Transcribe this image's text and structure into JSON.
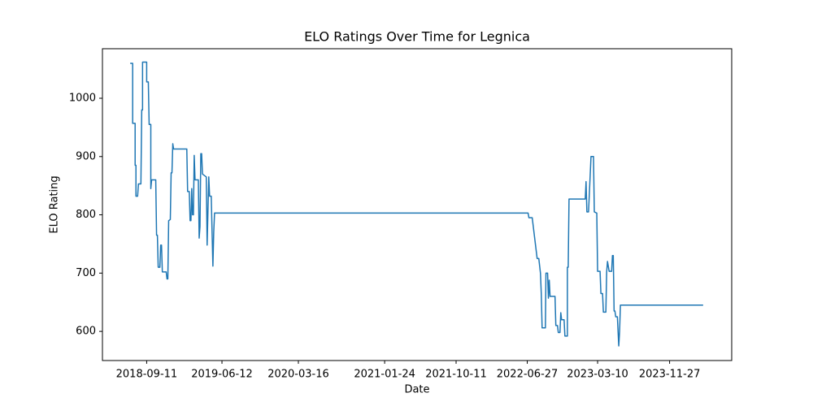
{
  "chart_data": {
    "type": "line",
    "title": "ELO Ratings Over Time for Legnica",
    "x_label": "Date",
    "y_label": "ELO Rating",
    "color": "#1f77b4",
    "x": [
      "2018-07-13",
      "2018-07-22",
      "2018-07-22",
      "2018-07-31",
      "2018-07-31",
      "2018-08-03",
      "2018-08-03",
      "2018-08-09",
      "2018-08-12",
      "2018-08-21",
      "2018-08-24",
      "2018-08-27",
      "2018-08-27",
      "2018-09-11",
      "2018-09-11",
      "2018-09-17",
      "2018-09-20",
      "2018-09-26",
      "2018-09-26",
      "2018-09-29",
      "2018-10-14",
      "2018-10-17",
      "2018-10-20",
      "2018-10-23",
      "2018-10-29",
      "2018-11-01",
      "2018-11-04",
      "2018-11-07",
      "2018-11-21",
      "2018-11-24",
      "2018-11-27",
      "2018-11-30",
      "2018-12-06",
      "2018-12-09",
      "2018-12-12",
      "2018-12-15",
      "2018-12-18",
      "2019-02-04",
      "2019-02-07",
      "2019-02-13",
      "2019-02-16",
      "2019-02-19",
      "2019-02-22",
      "2019-02-25",
      "2019-02-28",
      "2019-03-03",
      "2019-03-06",
      "2019-03-18",
      "2019-03-21",
      "2019-03-24",
      "2019-03-27",
      "2019-03-30",
      "2019-04-02",
      "2019-04-16",
      "2019-04-19",
      "2019-04-25",
      "2019-04-28",
      "2019-05-04",
      "2019-05-07",
      "2019-05-10",
      "2019-05-13",
      "2019-05-16",
      "2022-06-30",
      "2022-07-03",
      "2022-07-15",
      "2022-08-02",
      "2022-08-08",
      "2022-08-14",
      "2022-08-17",
      "2022-08-20",
      "2022-09-01",
      "2022-09-03",
      "2022-09-09",
      "2022-09-12",
      "2022-09-15",
      "2022-09-18",
      "2022-10-06",
      "2022-10-09",
      "2022-10-15",
      "2022-10-18",
      "2022-10-24",
      "2022-10-27",
      "2022-10-30",
      "2022-11-08",
      "2022-11-11",
      "2022-11-20",
      "2022-11-20",
      "2022-11-23",
      "2022-11-26",
      "2023-01-24",
      "2023-01-27",
      "2023-01-30",
      "2023-02-05",
      "2023-02-11",
      "2023-02-14",
      "2023-02-23",
      "2023-02-26",
      "2023-03-07",
      "2023-03-10",
      "2023-03-19",
      "2023-03-22",
      "2023-03-28",
      "2023-03-31",
      "2023-04-09",
      "2023-04-12",
      "2023-04-15",
      "2023-04-21",
      "2023-04-30",
      "2023-05-03",
      "2023-05-06",
      "2023-05-09",
      "2023-05-12",
      "2023-05-15",
      "2023-05-21",
      "2023-05-26",
      "2023-05-29",
      "2023-06-01",
      "2024-03-28"
    ],
    "values": [
      1060,
      1060,
      957,
      957,
      885,
      885,
      832,
      832,
      853,
      853,
      980,
      980,
      1062,
      1062,
      1028,
      1028,
      955,
      955,
      845,
      860,
      860,
      765,
      765,
      710,
      710,
      748,
      748,
      702,
      702,
      690,
      690,
      790,
      792,
      872,
      872,
      922,
      913,
      913,
      840,
      840,
      790,
      790,
      845,
      800,
      800,
      902,
      860,
      860,
      760,
      780,
      905,
      905,
      870,
      865,
      748,
      865,
      832,
      832,
      770,
      712,
      770,
      803,
      803,
      795,
      795,
      725,
      725,
      700,
      665,
      606,
      606,
      700,
      700,
      657,
      688,
      660,
      660,
      610,
      610,
      598,
      598,
      632,
      620,
      620,
      592,
      592,
      710,
      710,
      827,
      827,
      857,
      805,
      805,
      868,
      900,
      900,
      805,
      803,
      703,
      703,
      665,
      665,
      633,
      633,
      702,
      720,
      703,
      703,
      730,
      730,
      635,
      635,
      625,
      625,
      575,
      600,
      645,
      645
    ],
    "xlim": [
      "2018-04-03",
      "2024-07-10"
    ],
    "xticks": [
      "2018-09-11",
      "2019-06-12",
      "2020-03-16",
      "2021-01-24",
      "2021-10-11",
      "2022-06-27",
      "2023-03-10",
      "2023-11-27"
    ],
    "ylim": [
      550,
      1085
    ],
    "yticks": [
      600,
      700,
      800,
      900,
      1000
    ]
  }
}
